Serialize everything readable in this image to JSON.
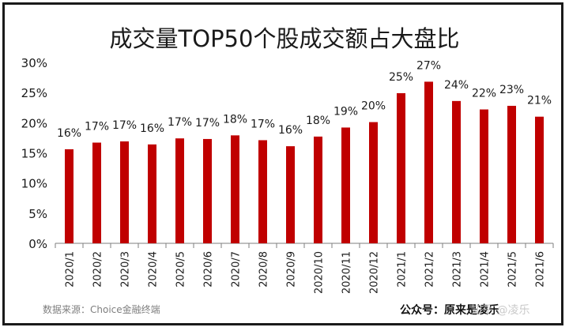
{
  "chart_data": {
    "type": "bar",
    "title": "成交量TOP50个股成交额占大盘比",
    "categories": [
      "2020/1",
      "2020/2",
      "2020/3",
      "2020/4",
      "2020/5",
      "2020/6",
      "2020/7",
      "2020/8",
      "2020/9",
      "2020/10",
      "2020/11",
      "2020/12",
      "2021/1",
      "2021/2",
      "2021/3",
      "2021/4",
      "2021/5",
      "2021/6"
    ],
    "values": [
      15.6,
      16.7,
      16.9,
      16.4,
      17.4,
      17.3,
      17.9,
      17.1,
      16.1,
      17.7,
      19.2,
      20.1,
      24.9,
      26.8,
      23.6,
      22.2,
      22.8,
      21.0
    ],
    "data_labels": [
      "16%",
      "17%",
      "17%",
      "16%",
      "17%",
      "17%",
      "18%",
      "17%",
      "16%",
      "18%",
      "19%",
      "20%",
      "25%",
      "27%",
      "24%",
      "22%",
      "23%",
      "21%"
    ],
    "ylim": [
      0,
      30
    ],
    "yticks": [
      0,
      5,
      10,
      15,
      20,
      25,
      30
    ],
    "ytick_labels": [
      "0%",
      "5%",
      "10%",
      "15%",
      "20%",
      "25%",
      "30%"
    ],
    "xlabel": "",
    "ylabel": "",
    "grid": false,
    "legend": "none",
    "bar_color": "#c00000"
  },
  "footer": {
    "source": "数据来源：Choice金融终端",
    "account": "公众号：原来是凌乐",
    "watermark": "知乎 @凌乐"
  }
}
